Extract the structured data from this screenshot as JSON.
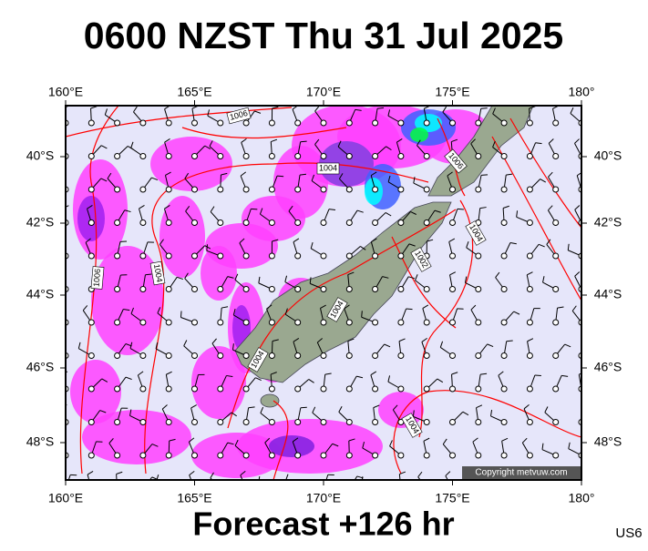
{
  "header": {
    "title": "0600 NZST Thu 31 Jul 2025"
  },
  "map": {
    "lon_labels": [
      "160°E",
      "165°E",
      "170°E",
      "175°E",
      "180°"
    ],
    "lat_labels": [
      "40°S",
      "42°S",
      "44°S",
      "46°S",
      "48°S"
    ],
    "isobar_labels": [
      "1006",
      "1004",
      "1006",
      "1004",
      "1002",
      "1006",
      "1004",
      "1004",
      "1004",
      "1004"
    ],
    "copyright": "Copyright metvuw.com"
  },
  "footer": {
    "forecast": "Forecast +126 hr",
    "code": "US6"
  }
}
